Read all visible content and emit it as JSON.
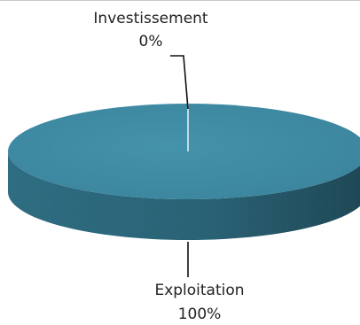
{
  "chart_data": {
    "type": "pie",
    "style": "3d",
    "title": "",
    "categories": [
      "Investissement",
      "Exploitation"
    ],
    "values": [
      0,
      100
    ],
    "data_labels": [
      {
        "name": "Investissement",
        "value": "0%"
      },
      {
        "name": "Exploitation",
        "value": "100%"
      }
    ],
    "legend": "none",
    "colors": {
      "top": "#3d8aa3",
      "side": "#2a6275",
      "side_dark": "#1e4755",
      "leader": "#111111",
      "divider": "#e8f4f8"
    }
  }
}
